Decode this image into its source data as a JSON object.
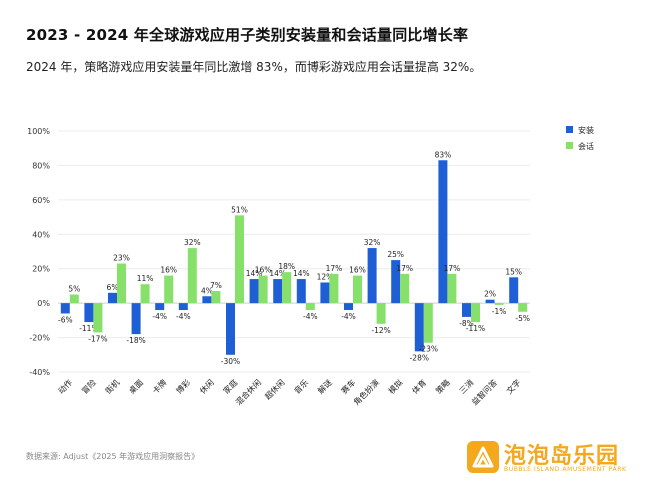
{
  "title": "2023 - 2024 年全球游戏应用子类别安装量和会话量同比增长率",
  "subtitle": "2024 年，策略游戏应用安装量年同比激增 83%，而博彩游戏应用会话量提高 32%。",
  "source": "数据来源: Adjust《2025 年游戏应用洞察报告》",
  "logo": {
    "cn": "泡泡岛乐园",
    "en": "BUBBLE ISLAND AMUSEMENT PARK"
  },
  "colors": {
    "install": "#1f5fd6",
    "session": "#86e06a",
    "accent": "#f4a81d"
  },
  "chart_data": {
    "type": "bar",
    "categories": [
      "动作",
      "冒险",
      "街机",
      "桌面",
      "卡牌",
      "博彩",
      "休闲",
      "家庭",
      "混合休闲",
      "超休闲",
      "音乐",
      "解谜",
      "赛车",
      "角色扮演",
      "模拟",
      "体育",
      "策略",
      "三消",
      "益智问答",
      "文字"
    ],
    "series": [
      {
        "name": "安装",
        "values": [
          -6,
          -11,
          6,
          -18,
          -4,
          -4,
          4,
          -30,
          14,
          14,
          14,
          12,
          -4,
          32,
          25,
          -28,
          83,
          -8,
          2,
          15
        ]
      },
      {
        "name": "会话",
        "values": [
          5,
          -17,
          23,
          11,
          16,
          32,
          7,
          51,
          16,
          18,
          -4,
          17,
          16,
          -12,
          17,
          -23,
          17,
          -11,
          -1,
          -5
        ]
      }
    ],
    "yticks": [
      "100%",
      "80%",
      "60%",
      "40%",
      "20%",
      "0%",
      "-20%",
      "-40%"
    ],
    "ylim": [
      -40,
      100
    ],
    "legend_position": "top-right",
    "grid": true
  }
}
